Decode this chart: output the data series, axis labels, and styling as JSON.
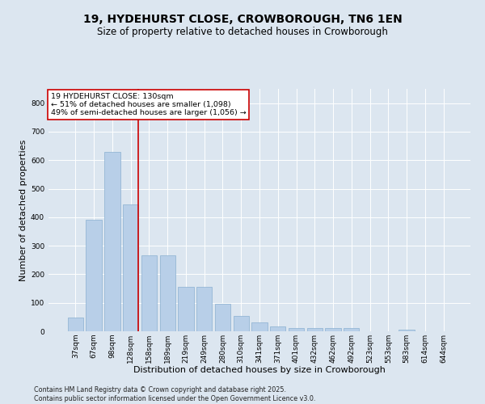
{
  "title": "19, HYDEHURST CLOSE, CROWBOROUGH, TN6 1EN",
  "subtitle": "Size of property relative to detached houses in Crowborough",
  "xlabel": "Distribution of detached houses by size in Crowborough",
  "ylabel": "Number of detached properties",
  "categories": [
    "37sqm",
    "67sqm",
    "98sqm",
    "128sqm",
    "158sqm",
    "189sqm",
    "219sqm",
    "249sqm",
    "280sqm",
    "310sqm",
    "341sqm",
    "371sqm",
    "401sqm",
    "432sqm",
    "462sqm",
    "492sqm",
    "523sqm",
    "553sqm",
    "583sqm",
    "614sqm",
    "644sqm"
  ],
  "values": [
    47,
    390,
    630,
    445,
    265,
    265,
    155,
    155,
    97,
    55,
    30,
    18,
    12,
    12,
    12,
    10,
    0,
    0,
    7,
    0,
    0
  ],
  "bar_color": "#b8cfe8",
  "bar_edge_color": "#8ab0d0",
  "vline_color": "#cc0000",
  "vline_x_index": 3,
  "annotation_text": "19 HYDEHURST CLOSE: 130sqm\n← 51% of detached houses are smaller (1,098)\n49% of semi-detached houses are larger (1,056) →",
  "annotation_box_color": "#ffffff",
  "annotation_box_edge": "#cc0000",
  "ylim": [
    0,
    850
  ],
  "yticks": [
    0,
    100,
    200,
    300,
    400,
    500,
    600,
    700,
    800
  ],
  "background_color": "#dce6f0",
  "plot_bg_color": "#dce6f0",
  "footer": "Contains HM Land Registry data © Crown copyright and database right 2025.\nContains public sector information licensed under the Open Government Licence v3.0.",
  "title_fontsize": 10,
  "subtitle_fontsize": 8.5,
  "xlabel_fontsize": 8,
  "ylabel_fontsize": 8,
  "tick_fontsize": 6.5,
  "footer_fontsize": 5.8
}
